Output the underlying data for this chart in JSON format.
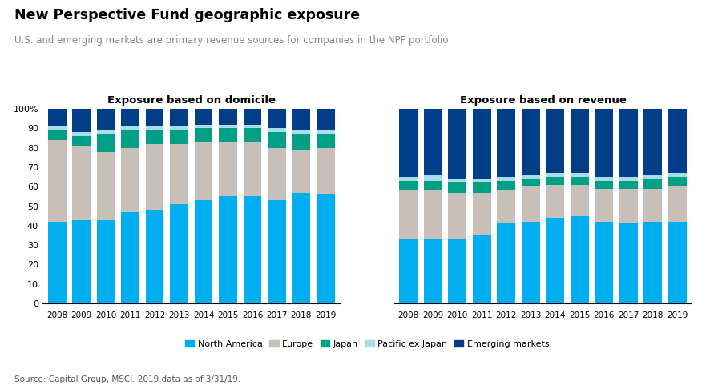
{
  "years": [
    2008,
    2009,
    2010,
    2011,
    2012,
    2013,
    2014,
    2015,
    2016,
    2017,
    2018,
    2019
  ],
  "domicile": {
    "north_america": [
      42,
      43,
      43,
      47,
      48,
      51,
      53,
      55,
      55,
      53,
      57,
      56
    ],
    "europe": [
      42,
      38,
      35,
      33,
      34,
      31,
      30,
      28,
      28,
      27,
      22,
      24
    ],
    "japan": [
      5,
      5,
      9,
      9,
      7,
      7,
      7,
      7,
      7,
      8,
      8,
      7
    ],
    "pacific_ex_japan": [
      2,
      2,
      2,
      2,
      2,
      2,
      2,
      2,
      2,
      2,
      2,
      2
    ],
    "emerging_markets": [
      9,
      12,
      11,
      9,
      9,
      9,
      8,
      8,
      8,
      10,
      11,
      11
    ]
  },
  "revenue": {
    "north_america": [
      33,
      33,
      33,
      35,
      41,
      42,
      44,
      45,
      42,
      41,
      42,
      42
    ],
    "europe": [
      25,
      25,
      24,
      22,
      17,
      18,
      17,
      16,
      17,
      18,
      17,
      18
    ],
    "japan": [
      5,
      5,
      5,
      5,
      5,
      4,
      4,
      4,
      4,
      4,
      5,
      5
    ],
    "pacific_ex_japan": [
      2,
      3,
      2,
      2,
      2,
      2,
      2,
      2,
      2,
      2,
      2,
      2
    ],
    "emerging_markets": [
      35,
      34,
      36,
      36,
      35,
      34,
      33,
      33,
      35,
      35,
      34,
      33
    ]
  },
  "colors": {
    "north_america": "#00AEEF",
    "europe": "#C8C0B8",
    "japan": "#00A087",
    "pacific_ex_japan": "#A8DCE8",
    "emerging_markets": "#003F87"
  },
  "title": "New Perspective Fund geographic exposure",
  "subtitle": "U.S. and emerging markets are primary revenue sources for companies in the NPF portfolio",
  "left_title": "Exposure based on domicile",
  "right_title": "Exposure based on revenue",
  "source": "Source: Capital Group, MSCI. 2019 data as of 3/31/19.",
  "legend_labels": [
    "North America",
    "Europe",
    "Japan",
    "Pacific ex Japan",
    "Emerging markets"
  ]
}
